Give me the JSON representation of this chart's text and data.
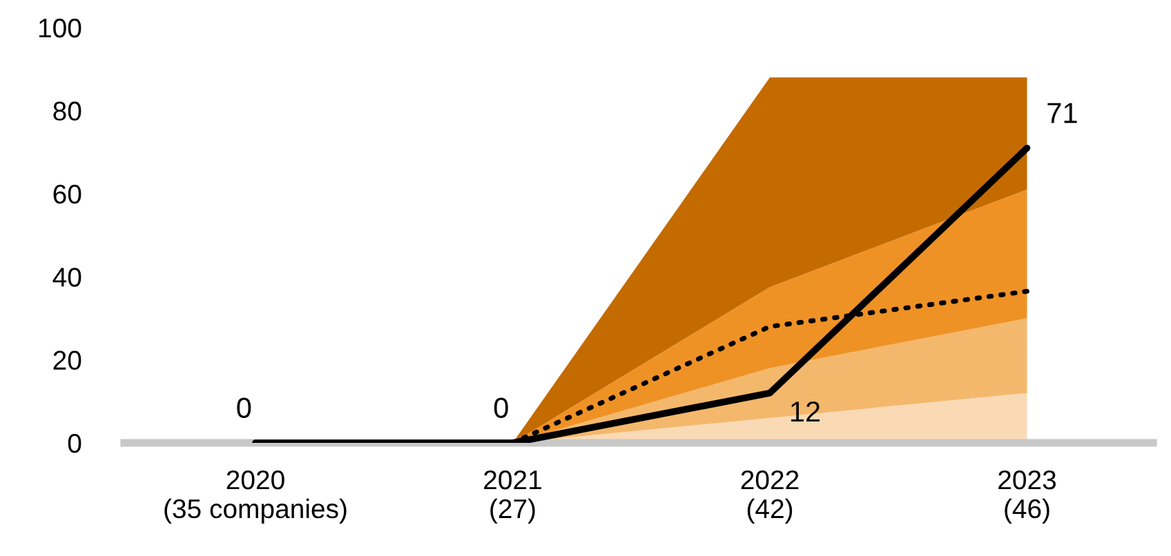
{
  "chart_data": {
    "type": "area",
    "stacked": true,
    "categories": [
      "2020\n(35 companies)",
      "2021\n(27)",
      "2022\n(42)",
      "2023\n(46)"
    ],
    "series": [
      {
        "color": "#fadab5",
        "values": [
          null,
          0,
          6,
          12
        ]
      },
      {
        "color": "#f4b86c",
        "values": [
          null,
          0,
          12,
          18
        ]
      },
      {
        "color": "#ef9226",
        "values": [
          null,
          0,
          19.5,
          31
        ]
      },
      {
        "color": "#c46b00",
        "values": [
          null,
          0,
          50.5,
          27
        ]
      },
      {
        "type": "line",
        "color": "#000000",
        "line_style": "dotted",
        "values": [
          null,
          0,
          28,
          36.5
        ]
      },
      {
        "type": "line",
        "color": "#000000",
        "line_style": "solid",
        "data_labels": true,
        "values": [
          0,
          0,
          12,
          71
        ]
      }
    ],
    "ylim": [
      0,
      100
    ],
    "yticks": [
      0,
      20,
      40,
      60,
      80,
      100
    ],
    "grid": false,
    "legend": false
  }
}
